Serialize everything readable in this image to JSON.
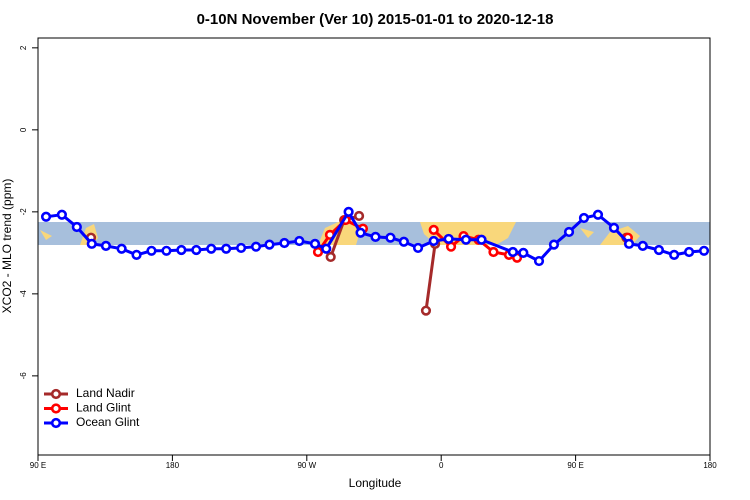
{
  "chart_data": {
    "type": "line",
    "title": "0-10N November (Ver 10)   2015-01-01 to 2020-12-18",
    "x_label": "Longitude",
    "y_label": "XCO2 - MLO trend (ppm)",
    "xlim": [
      90,
      540
    ],
    "ylim": [
      -7.93,
      2.24
    ],
    "xticks": [
      {
        "value": 90,
        "label": "90 E"
      },
      180,
      {
        "value": 270,
        "label": "90 W"
      },
      {
        "value": 360,
        "label": "0"
      },
      {
        "value": 450,
        "label": "90 E"
      },
      {
        "value": 540,
        "label": "180"
      }
    ],
    "yticks": [
      2,
      0,
      -2,
      -4,
      -6
    ],
    "legend": "bottom-left",
    "series": [
      {
        "name": "Land Nadir",
        "color": "#a52a2a",
        "x": [
          125.5,
          null,
          286,
          295,
          305,
          null,
          349.8,
          355.9,
          null,
          375,
          null,
          411,
          null,
          484
        ],
        "values": [
          -2.63,
          null,
          -3.1,
          -2.2,
          -2.1,
          null,
          -4.41,
          -2.78,
          null,
          -2.61,
          null,
          -3.07,
          null,
          -2.63
        ]
      },
      {
        "name": "Land Glint",
        "color": "#ff0000",
        "x": [
          277.5,
          285.5,
          296,
          307.6,
          null,
          355,
          366.6,
          375,
          385,
          395,
          405.4,
          410.8,
          null,
          485
        ],
        "values": [
          -2.98,
          -2.56,
          -2.2,
          -2.41,
          null,
          -2.44,
          -2.85,
          -2.59,
          -2.68,
          -2.98,
          -3.05,
          -3.12,
          null,
          -2.63
        ]
      },
      {
        "name": "Ocean Glint",
        "color": "#0000ff",
        "x": [
          95.4,
          106,
          116,
          126,
          135.5,
          146,
          156,
          166,
          176,
          186,
          196,
          206,
          216,
          226,
          236,
          245,
          255,
          265,
          275.5,
          283,
          298,
          306,
          316,
          326,
          335,
          344.5,
          355,
          365,
          376.6,
          387,
          408,
          415,
          425.5,
          435.5,
          445.6,
          455.6,
          465,
          475.7,
          485.8,
          495,
          505.8,
          516,
          526,
          536
        ],
        "values": [
          -2.12,
          -2.07,
          -2.37,
          -2.78,
          -2.83,
          -2.9,
          -3.05,
          -2.95,
          -2.95,
          -2.93,
          -2.93,
          -2.9,
          -2.9,
          -2.88,
          -2.85,
          -2.8,
          -2.76,
          -2.71,
          -2.78,
          -2.9,
          -2.0,
          -2.51,
          -2.61,
          -2.63,
          -2.73,
          -2.88,
          -2.71,
          -2.66,
          -2.68,
          -2.68,
          -2.98,
          -3.0,
          -3.2,
          -2.8,
          -2.49,
          -2.15,
          -2.07,
          -2.39,
          -2.78,
          -2.83,
          -2.93,
          -3.05,
          -2.98,
          -2.95
        ]
      }
    ]
  }
}
